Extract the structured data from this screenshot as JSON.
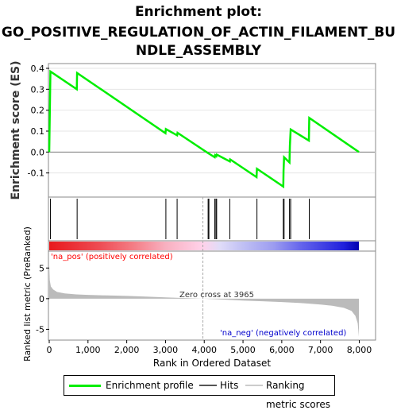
{
  "title_lines": [
    "Enrichment plot:",
    "GO_POSITIVE_REGULATION_OF_ACTIN_FILAMENT_BU",
    "NDLE_ASSEMBLY"
  ],
  "colors": {
    "enrichment": "#00ee00",
    "hits": "#000000",
    "metric": "#bbbbbb",
    "pos_label": "#ff0000",
    "neg_label": "#0000cc",
    "zero_cross_line": "#aaaaaa"
  },
  "legend": {
    "enrichment_label": "Enrichment profile",
    "hits_label": "Hits",
    "ranking_label": "Ranking metric scores"
  },
  "labels": {
    "pos": "'na_pos' (positively correlated)",
    "neg": "'na_neg' (negatively correlated)",
    "zero_cross": "Zero cross at 3965"
  },
  "chart_data": [
    {
      "type": "line",
      "name": "enrichment-profile",
      "ylabel": "Enrichment score (ES)",
      "xlim": [
        0,
        8400
      ],
      "ylim": [
        -0.2,
        0.4
      ],
      "yticks": [
        -0.1,
        0.0,
        0.1,
        0.2,
        0.3,
        0.4
      ],
      "ytick_labels": [
        "-0.1",
        "0.0",
        "0.1",
        "0.2",
        "0.3",
        "0.4"
      ],
      "points": [
        [
          0,
          0.0
        ],
        [
          30,
          0.385
        ],
        [
          710,
          0.3
        ],
        [
          720,
          0.378
        ],
        [
          3000,
          0.09
        ],
        [
          3010,
          0.11
        ],
        [
          3300,
          0.08
        ],
        [
          3310,
          0.092
        ],
        [
          4100,
          -0.005
        ],
        [
          4270,
          -0.025
        ],
        [
          4280,
          -0.015
        ],
        [
          4310,
          -0.02
        ],
        [
          4320,
          -0.012
        ],
        [
          4660,
          -0.045
        ],
        [
          4670,
          -0.035
        ],
        [
          5350,
          -0.12
        ],
        [
          5360,
          -0.08
        ],
        [
          6040,
          -0.165
        ],
        [
          6045,
          -0.09
        ],
        [
          6060,
          -0.025
        ],
        [
          6200,
          -0.05
        ],
        [
          6210,
          0.03
        ],
        [
          6230,
          0.108
        ],
        [
          6700,
          0.055
        ],
        [
          6710,
          0.163
        ],
        [
          7990,
          0.0
        ]
      ]
    },
    {
      "type": "table",
      "name": "hits",
      "positions": [
        30,
        720,
        3010,
        3300,
        4100,
        4120,
        4270,
        4300,
        4320,
        4660,
        5360,
        6040,
        6060,
        6200,
        6230,
        6710
      ]
    },
    {
      "type": "area",
      "name": "ranked-metric",
      "ylabel": "Ranked list metric (PreRanked)",
      "xlabel": "Rank in Ordered Dataset",
      "xlim": [
        0,
        8400
      ],
      "ylim": [
        -6.5,
        7.5
      ],
      "yticks": [
        -5,
        0,
        5
      ],
      "ytick_labels": [
        "-5",
        "0",
        "5"
      ],
      "xticks": [
        0,
        1000,
        2000,
        3000,
        4000,
        5000,
        6000,
        7000,
        8000
      ],
      "xtick_labels": [
        "0",
        "1,000",
        "2,000",
        "3,000",
        "4,000",
        "5,000",
        "6,000",
        "7,000",
        "8,000"
      ],
      "zero_cross": 3965,
      "points": [
        [
          0,
          5.5
        ],
        [
          15,
          3.0
        ],
        [
          40,
          2.0
        ],
        [
          100,
          1.5
        ],
        [
          200,
          1.1
        ],
        [
          400,
          0.85
        ],
        [
          700,
          0.7
        ],
        [
          1000,
          0.62
        ],
        [
          1500,
          0.52
        ],
        [
          2000,
          0.45
        ],
        [
          2500,
          0.35
        ],
        [
          3000,
          0.22
        ],
        [
          3500,
          0.1
        ],
        [
          3965,
          0.0
        ],
        [
          4500,
          -0.15
        ],
        [
          5000,
          -0.3
        ],
        [
          5500,
          -0.42
        ],
        [
          6000,
          -0.55
        ],
        [
          6500,
          -0.72
        ],
        [
          7000,
          -0.95
        ],
        [
          7300,
          -1.15
        ],
        [
          7600,
          -1.5
        ],
        [
          7800,
          -2.0
        ],
        [
          7900,
          -2.8
        ],
        [
          7960,
          -4.0
        ],
        [
          7990,
          -6.2
        ]
      ]
    }
  ],
  "heatmap_stops": [
    {
      "x": 0,
      "color": "#e8181c"
    },
    {
      "x": 1300,
      "color": "#ee4c54"
    },
    {
      "x": 2150,
      "color": "#f47c84"
    },
    {
      "x": 3000,
      "color": "#f8b0c0"
    },
    {
      "x": 3965,
      "color": "#ffd2ea"
    },
    {
      "x": 4400,
      "color": "#e0dcf8"
    },
    {
      "x": 5000,
      "color": "#c0c0f4"
    },
    {
      "x": 5800,
      "color": "#9c9cf0"
    },
    {
      "x": 6500,
      "color": "#6464ec"
    },
    {
      "x": 7600,
      "color": "#2020dc"
    },
    {
      "x": 7990,
      "color": "#0000b0"
    }
  ]
}
